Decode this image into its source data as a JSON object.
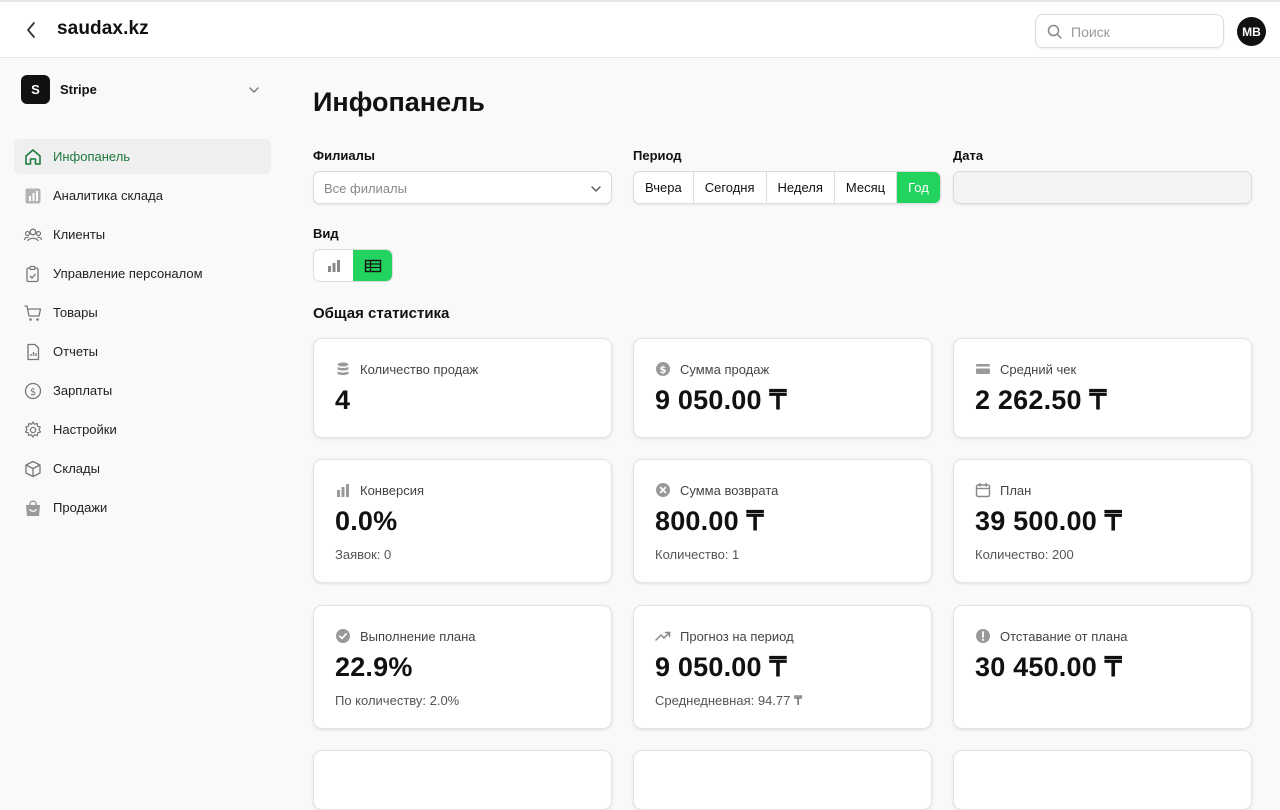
{
  "header": {
    "brand": "saudax.kz",
    "search_placeholder": "Поиск",
    "avatar_initials": "MB"
  },
  "sidebar": {
    "org": {
      "logo_letter": "S",
      "name": "Stripe"
    },
    "items": [
      {
        "label": "Инфопанель",
        "icon": "home-icon",
        "active": true
      },
      {
        "label": "Аналитика склада",
        "icon": "bar-chart-icon"
      },
      {
        "label": "Клиенты",
        "icon": "users-icon"
      },
      {
        "label": "Управление персоналом",
        "icon": "clipboard-icon"
      },
      {
        "label": "Товары",
        "icon": "cart-icon"
      },
      {
        "label": "Отчеты",
        "icon": "report-icon"
      },
      {
        "label": "Зарплаты",
        "icon": "dollar-icon"
      },
      {
        "label": "Настройки",
        "icon": "gear-icon"
      },
      {
        "label": "Склады",
        "icon": "box-icon"
      },
      {
        "label": "Продажи",
        "icon": "shopping-bag-icon"
      }
    ]
  },
  "main": {
    "title": "Инфопанель",
    "filters": {
      "branches_label": "Филиалы",
      "branches_value": "Все филиалы",
      "period_label": "Период",
      "period_options": [
        "Вчера",
        "Сегодня",
        "Неделя",
        "Месяц",
        "Год"
      ],
      "period_selected": "Год",
      "date_label": "Дата",
      "date_value": ""
    },
    "view": {
      "label": "Вид",
      "selected": "table"
    },
    "stats_title": "Общая статистика",
    "cards": [
      {
        "icon": "database-icon",
        "title": "Количество продаж",
        "value": "4",
        "sub": ""
      },
      {
        "icon": "dollar-circle-icon",
        "title": "Сумма продаж",
        "value": "9 050.00 ₸",
        "sub": ""
      },
      {
        "icon": "credit-card-icon",
        "title": "Средний чек",
        "value": "2 262.50 ₸",
        "sub": ""
      },
      {
        "icon": "bar-chart-icon",
        "title": "Конверсия",
        "value": "0.0%",
        "sub": "Заявок: 0"
      },
      {
        "icon": "x-circle-icon",
        "title": "Сумма возврата",
        "value": "800.00 ₸",
        "sub": "Количество: 1"
      },
      {
        "icon": "calendar-icon",
        "title": "План",
        "value": "39 500.00 ₸",
        "sub": "Количество: 200"
      },
      {
        "icon": "check-circle-icon",
        "title": "Выполнение плана",
        "value": "22.9%",
        "sub": "По количеству: 2.0%"
      },
      {
        "icon": "trending-up-icon",
        "title": "Прогноз на период",
        "value": "9 050.00 ₸",
        "sub": "Среднедневная: 94.77 ₸"
      },
      {
        "icon": "alert-circle-icon",
        "title": "Отставание от плана",
        "value": "30 450.00 ₸",
        "sub": ""
      }
    ]
  },
  "colors": {
    "accent_green": "#22d45f",
    "active_nav_text": "#1f7a3c"
  }
}
